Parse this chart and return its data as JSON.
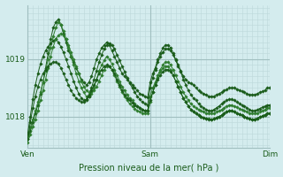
{
  "background_color": "#d4ecee",
  "plot_bg_color": "#d4ecee",
  "grid_color_major": "#a0bfc0",
  "grid_color_minor": "#bcd8da",
  "line_color_dark": "#1a5c1a",
  "line_color_mid": "#2e7d2e",
  "marker_style": "D",
  "marker_size": 1.8,
  "linewidth": 0.7,
  "xlabel": "Pression niveau de la mer( hPa )",
  "xlabel_fontsize": 7,
  "xtick_labels": [
    "Ven",
    "Sam",
    "Dim"
  ],
  "xtick_positions": [
    0,
    48,
    95
  ],
  "ylim": [
    1017.45,
    1019.95
  ],
  "ytick_positions": [
    1018,
    1019
  ],
  "ytick_labels": [
    "1018",
    "1019"
  ],
  "ytick_fontsize": 6.5,
  "xtick_fontsize": 6.5,
  "n_points": 96,
  "series": [
    [
      1017.6,
      1017.75,
      1017.9,
      1018.05,
      1018.2,
      1018.4,
      1018.6,
      1018.85,
      1019.1,
      1019.35,
      1019.55,
      1019.65,
      1019.7,
      1019.6,
      1019.45,
      1019.3,
      1019.15,
      1019.05,
      1018.95,
      1018.85,
      1018.75,
      1018.65,
      1018.6,
      1018.55,
      1018.6,
      1018.7,
      1018.85,
      1019.0,
      1019.1,
      1019.2,
      1019.25,
      1019.3,
      1019.25,
      1019.15,
      1019.05,
      1018.95,
      1018.85,
      1018.75,
      1018.7,
      1018.65,
      1018.6,
      1018.55,
      1018.5,
      1018.45,
      1018.4,
      1018.38,
      1018.35,
      1018.33,
      1018.6,
      1018.75,
      1018.85,
      1019.0,
      1019.1,
      1019.2,
      1019.25,
      1019.25,
      1019.2,
      1019.1,
      1019.0,
      1018.9,
      1018.8,
      1018.7,
      1018.65,
      1018.6,
      1018.58,
      1018.55,
      1018.5,
      1018.45,
      1018.42,
      1018.4,
      1018.38,
      1018.35,
      1018.35,
      1018.35,
      1018.38,
      1018.4,
      1018.42,
      1018.45,
      1018.47,
      1018.5,
      1018.5,
      1018.5,
      1018.48,
      1018.46,
      1018.44,
      1018.42,
      1018.4,
      1018.38,
      1018.38,
      1018.38,
      1018.4,
      1018.42,
      1018.44,
      1018.46,
      1018.5,
      1018.5
    ],
    [
      1017.65,
      1017.8,
      1017.95,
      1018.1,
      1018.25,
      1018.42,
      1018.6,
      1018.8,
      1019.0,
      1019.2,
      1019.4,
      1019.55,
      1019.65,
      1019.6,
      1019.5,
      1019.35,
      1019.2,
      1019.05,
      1018.9,
      1018.75,
      1018.62,
      1018.5,
      1018.42,
      1018.35,
      1018.35,
      1018.4,
      1018.5,
      1018.65,
      1018.8,
      1018.9,
      1018.98,
      1019.05,
      1019.0,
      1018.92,
      1018.82,
      1018.72,
      1018.62,
      1018.52,
      1018.45,
      1018.38,
      1018.32,
      1018.28,
      1018.22,
      1018.18,
      1018.15,
      1018.12,
      1018.1,
      1018.1,
      1018.35,
      1018.5,
      1018.6,
      1018.72,
      1018.82,
      1018.9,
      1018.95,
      1018.95,
      1018.9,
      1018.82,
      1018.72,
      1018.62,
      1018.52,
      1018.42,
      1018.35,
      1018.28,
      1018.22,
      1018.18,
      1018.15,
      1018.12,
      1018.1,
      1018.08,
      1018.06,
      1018.05,
      1018.05,
      1018.05,
      1018.08,
      1018.1,
      1018.12,
      1018.15,
      1018.18,
      1018.2,
      1018.2,
      1018.18,
      1018.16,
      1018.14,
      1018.12,
      1018.1,
      1018.08,
      1018.06,
      1018.05,
      1018.05,
      1018.06,
      1018.08,
      1018.1,
      1018.12,
      1018.15,
      1018.15
    ],
    [
      1017.7,
      1018.0,
      1018.3,
      1018.55,
      1018.75,
      1018.92,
      1019.05,
      1019.15,
      1019.22,
      1019.28,
      1019.32,
      1019.35,
      1019.3,
      1019.22,
      1019.12,
      1019.0,
      1018.88,
      1018.75,
      1018.62,
      1018.5,
      1018.4,
      1018.32,
      1018.28,
      1018.3,
      1018.38,
      1018.5,
      1018.65,
      1018.8,
      1018.95,
      1019.08,
      1019.18,
      1019.25,
      1019.28,
      1019.25,
      1019.18,
      1019.08,
      1018.98,
      1018.88,
      1018.78,
      1018.68,
      1018.58,
      1018.5,
      1018.42,
      1018.35,
      1018.3,
      1018.25,
      1018.22,
      1018.2,
      1018.5,
      1018.68,
      1018.82,
      1018.95,
      1019.05,
      1019.12,
      1019.18,
      1019.18,
      1019.15,
      1019.08,
      1018.98,
      1018.88,
      1018.78,
      1018.65,
      1018.55,
      1018.45,
      1018.38,
      1018.32,
      1018.28,
      1018.22,
      1018.18,
      1018.15,
      1018.12,
      1018.1,
      1018.1,
      1018.12,
      1018.15,
      1018.18,
      1018.22,
      1018.25,
      1018.28,
      1018.3,
      1018.3,
      1018.28,
      1018.25,
      1018.22,
      1018.2,
      1018.18,
      1018.15,
      1018.12,
      1018.1,
      1018.1,
      1018.12,
      1018.14,
      1018.16,
      1018.18,
      1018.2,
      1018.2
    ],
    [
      1017.55,
      1017.68,
      1017.82,
      1017.95,
      1018.1,
      1018.28,
      1018.45,
      1018.65,
      1018.85,
      1019.05,
      1019.22,
      1019.35,
      1019.42,
      1019.45,
      1019.42,
      1019.35,
      1019.25,
      1019.12,
      1019.0,
      1018.88,
      1018.75,
      1018.62,
      1018.52,
      1018.45,
      1018.42,
      1018.42,
      1018.45,
      1018.52,
      1018.62,
      1018.72,
      1018.82,
      1018.88,
      1018.88,
      1018.82,
      1018.72,
      1018.62,
      1018.52,
      1018.42,
      1018.35,
      1018.28,
      1018.22,
      1018.18,
      1018.14,
      1018.1,
      1018.08,
      1018.06,
      1018.05,
      1018.05,
      1018.25,
      1018.42,
      1018.55,
      1018.68,
      1018.78,
      1018.85,
      1018.88,
      1018.88,
      1018.82,
      1018.72,
      1018.62,
      1018.52,
      1018.42,
      1018.32,
      1018.25,
      1018.18,
      1018.12,
      1018.08,
      1018.05,
      1018.02,
      1018.0,
      1017.98,
      1017.97,
      1017.96,
      1017.95,
      1017.96,
      1017.98,
      1018.0,
      1018.02,
      1018.05,
      1018.08,
      1018.1,
      1018.1,
      1018.08,
      1018.06,
      1018.04,
      1018.02,
      1018.0,
      1017.98,
      1017.96,
      1017.95,
      1017.95,
      1017.97,
      1017.99,
      1018.01,
      1018.03,
      1018.05,
      1018.05
    ],
    [
      1017.6,
      1017.9,
      1018.15,
      1018.35,
      1018.52,
      1018.65,
      1018.75,
      1018.82,
      1018.88,
      1018.92,
      1018.95,
      1018.95,
      1018.92,
      1018.85,
      1018.75,
      1018.65,
      1018.55,
      1018.45,
      1018.38,
      1018.32,
      1018.28,
      1018.25,
      1018.25,
      1018.28,
      1018.35,
      1018.45,
      1018.55,
      1018.65,
      1018.75,
      1018.82,
      1018.88,
      1018.9,
      1018.88,
      1018.82,
      1018.75,
      1018.65,
      1018.55,
      1018.45,
      1018.38,
      1018.32,
      1018.28,
      1018.24,
      1018.2,
      1018.18,
      1018.15,
      1018.12,
      1018.1,
      1018.1,
      1018.28,
      1018.42,
      1018.55,
      1018.65,
      1018.72,
      1018.78,
      1018.82,
      1018.82,
      1018.78,
      1018.72,
      1018.62,
      1018.52,
      1018.42,
      1018.32,
      1018.25,
      1018.18,
      1018.12,
      1018.08,
      1018.05,
      1018.02,
      1018.0,
      1017.98,
      1017.96,
      1017.95,
      1017.95,
      1017.96,
      1017.98,
      1018.0,
      1018.02,
      1018.05,
      1018.08,
      1018.1,
      1018.1,
      1018.08,
      1018.06,
      1018.04,
      1018.02,
      1018.0,
      1017.98,
      1017.96,
      1017.95,
      1017.95,
      1017.97,
      1017.99,
      1018.01,
      1018.03,
      1018.05,
      1018.05
    ]
  ]
}
